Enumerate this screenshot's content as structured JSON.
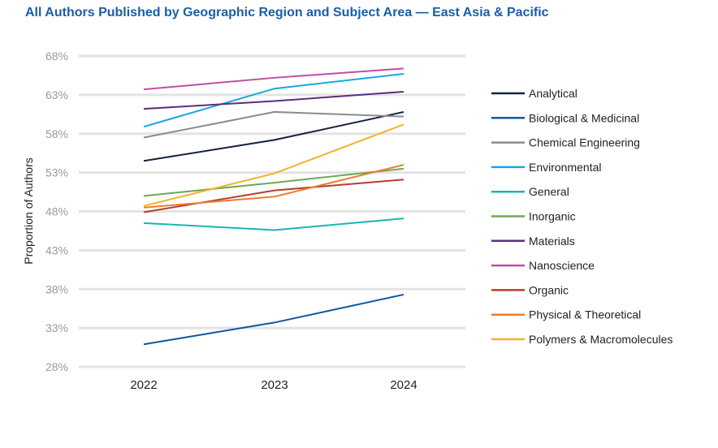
{
  "chart_data": {
    "type": "line",
    "title": "All Authors Published by Geographic Region and Subject Area — East Asia & Pacific",
    "xlabel": "",
    "ylabel": "Proportion of Authors",
    "categories": [
      "2022",
      "2023",
      "2024"
    ],
    "ylim": [
      28,
      68
    ],
    "yticks": [
      "28%",
      "33%",
      "38%",
      "43%",
      "48%",
      "53%",
      "58%",
      "63%",
      "68%"
    ],
    "grid": true,
    "legend_position": "right",
    "series": [
      {
        "name": "Analytical",
        "color": "#13223f",
        "values": [
          54.5,
          57.2,
          60.8
        ]
      },
      {
        "name": "Biological & Medicinal",
        "color": "#0f56a3",
        "values": [
          30.9,
          33.7,
          37.3
        ]
      },
      {
        "name": "Chemical Engineering",
        "color": "#8c8c8c",
        "values": [
          57.5,
          60.8,
          60.2
        ]
      },
      {
        "name": "Environmental",
        "color": "#1aa7e0",
        "values": [
          58.9,
          63.8,
          65.7
        ]
      },
      {
        "name": "General",
        "color": "#17b8b0",
        "values": [
          46.5,
          45.6,
          47.1
        ]
      },
      {
        "name": "Inorganic",
        "color": "#6aaa55",
        "values": [
          50.0,
          51.7,
          53.5
        ]
      },
      {
        "name": "Materials",
        "color": "#5c2e7e",
        "values": [
          61.2,
          62.2,
          63.4
        ]
      },
      {
        "name": "Nanoscience",
        "color": "#c04ea5",
        "values": [
          63.7,
          65.2,
          66.4
        ]
      },
      {
        "name": "Organic",
        "color": "#b2412a",
        "values": [
          47.9,
          50.7,
          52.1
        ]
      },
      {
        "name": "Physical & Theoretical",
        "color": "#ef7b2c",
        "values": [
          48.5,
          49.9,
          54.0
        ]
      },
      {
        "name": "Polymers & Macromolecules",
        "color": "#f2b32a",
        "values": [
          48.7,
          52.9,
          59.2
        ]
      }
    ]
  }
}
